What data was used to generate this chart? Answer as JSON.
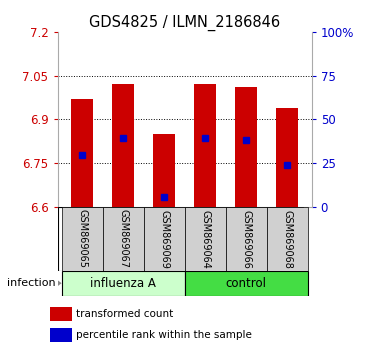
{
  "title": "GDS4825 / ILMN_2186846",
  "samples": [
    "GSM869065",
    "GSM869067",
    "GSM869069",
    "GSM869064",
    "GSM869066",
    "GSM869068"
  ],
  "group_labels": [
    "influenza A",
    "control"
  ],
  "influenza_color": "#ccffcc",
  "control_color": "#44dd44",
  "bar_bottom": 6.6,
  "bar_tops": [
    6.97,
    7.02,
    6.85,
    7.02,
    7.01,
    6.94
  ],
  "blue_positions": [
    6.78,
    6.835,
    6.633,
    6.835,
    6.83,
    6.745
  ],
  "ylim": [
    6.6,
    7.2
  ],
  "yticks_left": [
    6.6,
    6.75,
    6.9,
    7.05,
    7.2
  ],
  "yticks_right": [
    0,
    25,
    50,
    75,
    100
  ],
  "bar_color": "#cc0000",
  "blue_color": "#0000cc",
  "bg_color": "#ffffff",
  "label_infection": "infection",
  "legend_red": "transformed count",
  "legend_blue": "percentile rank within the sample",
  "sample_bg": "#d0d0d0",
  "grid_color": "#555555"
}
